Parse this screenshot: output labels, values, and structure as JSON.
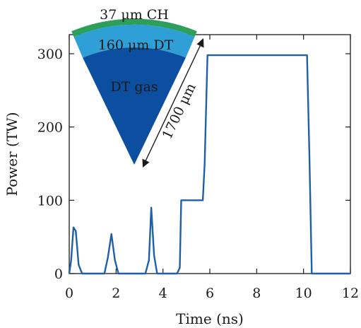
{
  "chart_data": {
    "type": "line",
    "title": "",
    "xlabel": "Time (ns)",
    "ylabel": "Power (TW)",
    "xlim": [
      0,
      12
    ],
    "ylim": [
      0,
      325
    ],
    "xticks": [
      0,
      2,
      4,
      6,
      8,
      10,
      12
    ],
    "yticks": [
      0,
      100,
      200,
      300
    ],
    "grid": false,
    "line_color": "#1f5fa8",
    "series": [
      {
        "x": [
          0,
          0.08,
          0.18,
          0.28,
          0.4,
          0.55,
          1.0,
          1.5,
          1.65,
          1.8,
          1.95,
          2.1,
          2.8,
          3.25,
          3.4,
          3.5,
          3.62,
          3.75,
          4.6,
          4.72,
          4.78,
          5.0,
          5.7,
          5.78,
          5.9,
          6.5,
          8.0,
          10.15,
          10.25,
          10.35,
          11.0,
          12.0
        ],
        "y": [
          0,
          18,
          63,
          58,
          12,
          0,
          0,
          0,
          22,
          54,
          18,
          0,
          0,
          0,
          18,
          90,
          25,
          0,
          0,
          8,
          100,
          100,
          100,
          150,
          298,
          298,
          298,
          298,
          160,
          0,
          0,
          0
        ]
      }
    ],
    "inset": {
      "layers": [
        {
          "label": "37 μm CH",
          "color": "#2e9e5b"
        },
        {
          "label": "160 μm DT",
          "color": "#2f9fd8"
        },
        {
          "label": "DT gas",
          "color": "#0c4fa0"
        }
      ],
      "radius_label": "1700 μm"
    }
  }
}
